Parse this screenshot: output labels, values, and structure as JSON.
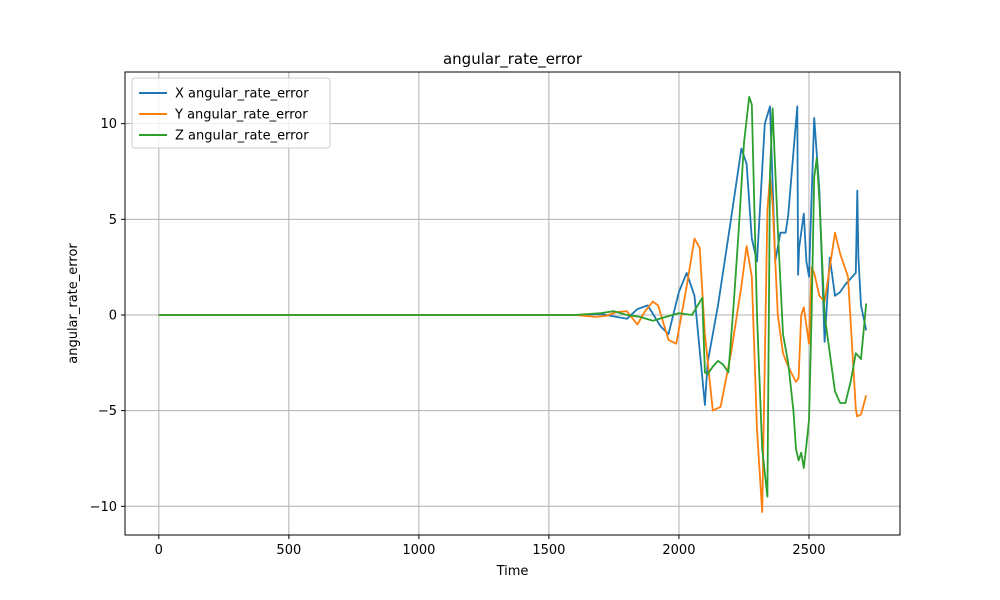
{
  "chart_data": {
    "type": "line",
    "title": "angular_rate_error",
    "xlabel": "Time",
    "ylabel": "angular_rate_error",
    "xlim": [
      -130,
      2850
    ],
    "ylim": [
      -11.5,
      12.7
    ],
    "xticks": [
      0,
      500,
      1000,
      1500,
      2000,
      2500
    ],
    "yticks": [
      -10,
      -5,
      0,
      5,
      10
    ],
    "xtick_labels": [
      "0",
      "500",
      "1000",
      "1500",
      "2000",
      "2500"
    ],
    "ytick_labels": [
      "−10",
      "−5",
      "0",
      "5",
      "10"
    ],
    "grid": true,
    "legend_position": "upper-left",
    "series": [
      {
        "name": "X angular_rate_error",
        "color": "#1f77b4",
        "x": [
          0,
          1600,
          1700,
          1760,
          1800,
          1840,
          1880,
          1930,
          1960,
          2000,
          2030,
          2060,
          2100,
          2110,
          2150,
          2200,
          2240,
          2260,
          2280,
          2300,
          2330,
          2350,
          2370,
          2390,
          2410,
          2420,
          2440,
          2455,
          2458,
          2462,
          2480,
          2490,
          2500,
          2520,
          2540,
          2560,
          2580,
          2600,
          2620,
          2640,
          2660,
          2680,
          2686,
          2690,
          2700,
          2720
        ],
        "y": [
          0,
          0,
          0.05,
          -0.1,
          -0.2,
          0.3,
          0.5,
          -0.6,
          -1.0,
          1.2,
          2.2,
          1.0,
          -4.7,
          -2.5,
          0.5,
          5.0,
          8.7,
          7.9,
          4.0,
          2.8,
          10.0,
          10.9,
          2.8,
          4.3,
          4.3,
          5.2,
          8.5,
          10.9,
          2.1,
          3.5,
          5.3,
          2.8,
          2.0,
          10.3,
          6.5,
          -1.4,
          3.0,
          1.0,
          1.2,
          1.6,
          1.9,
          2.2,
          6.5,
          3.0,
          0.5,
          -0.8
        ]
      },
      {
        "name": "Y angular_rate_error",
        "color": "#ff7f0e",
        "x": [
          0,
          1600,
          1680,
          1720,
          1760,
          1800,
          1840,
          1870,
          1900,
          1920,
          1960,
          1990,
          2030,
          2060,
          2080,
          2100,
          2130,
          2160,
          2200,
          2240,
          2260,
          2280,
          2300,
          2320,
          2340,
          2350,
          2360,
          2380,
          2400,
          2420,
          2450,
          2460,
          2470,
          2480,
          2500,
          2510,
          2520,
          2540,
          2560,
          2580,
          2600,
          2620,
          2650,
          2680,
          2685,
          2700,
          2710,
          2720
        ],
        "y": [
          0,
          0,
          -0.1,
          -0.05,
          0.15,
          0.2,
          -0.5,
          0.2,
          0.7,
          0.5,
          -1.3,
          -1.5,
          1.5,
          4.0,
          3.5,
          -1.0,
          -5.0,
          -4.8,
          -2.0,
          1.5,
          3.6,
          2.0,
          -6.0,
          -10.3,
          5.5,
          7.2,
          5.8,
          0.0,
          -2.0,
          -2.7,
          -3.5,
          -3.3,
          0.0,
          0.4,
          -1.5,
          2.5,
          2.2,
          1.0,
          0.7,
          2.5,
          4.3,
          3.2,
          2.0,
          -4.9,
          -5.3,
          -5.2,
          -4.7,
          -4.2
        ]
      },
      {
        "name": "Z angular_rate_error",
        "color": "#2ca02c",
        "x": [
          0,
          1600,
          1700,
          1750,
          1800,
          1850,
          1900,
          1950,
          2000,
          2050,
          2090,
          2100,
          2110,
          2130,
          2150,
          2170,
          2190,
          2210,
          2230,
          2250,
          2270,
          2280,
          2300,
          2320,
          2340,
          2350,
          2360,
          2380,
          2400,
          2420,
          2440,
          2450,
          2460,
          2470,
          2480,
          2490,
          2500,
          2510,
          2520,
          2530,
          2540,
          2560,
          2580,
          2600,
          2620,
          2640,
          2660,
          2680,
          2700,
          2720
        ],
        "y": [
          0,
          0,
          0.1,
          0.2,
          0.0,
          -0.1,
          -0.3,
          -0.1,
          0.1,
          0.0,
          0.9,
          -3.0,
          -3.1,
          -2.7,
          -2.4,
          -2.6,
          -3.0,
          0.5,
          4.5,
          9.0,
          11.4,
          11.0,
          0.0,
          -7.0,
          -9.5,
          7.4,
          10.8,
          4.5,
          -1.0,
          -2.5,
          -5.0,
          -7.0,
          -7.6,
          -7.2,
          -8.0,
          -6.8,
          -5.5,
          0.0,
          7.2,
          8.2,
          6.0,
          0.0,
          -2.0,
          -4.0,
          -4.6,
          -4.6,
          -3.5,
          -2.0,
          -2.3,
          0.6
        ]
      }
    ]
  }
}
